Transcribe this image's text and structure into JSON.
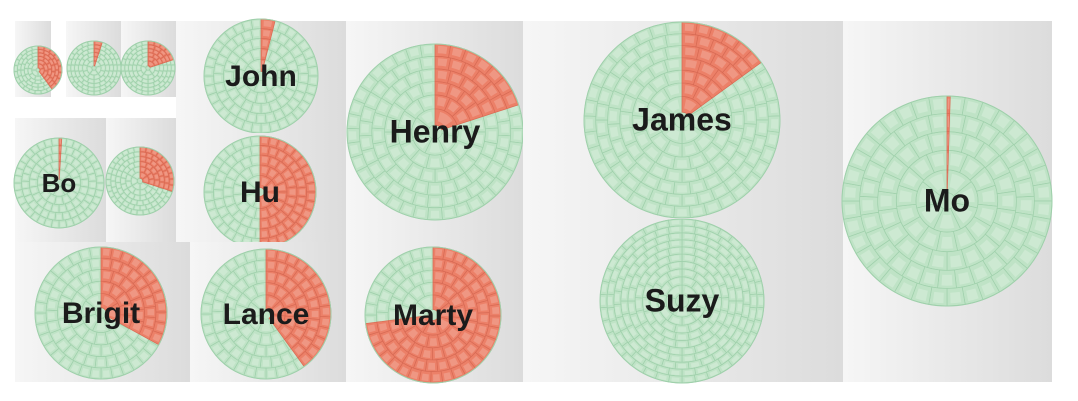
{
  "chart_data": {
    "type": "radial-treemap",
    "colors": {
      "background": "#ffffff",
      "panel_light": "#f6f6f6",
      "panel_dark": "#dcdcdc",
      "highlight": "#ec8068",
      "base": "#bfe3c6",
      "seam": "#9fd0ab",
      "label": "#1b1b1b"
    },
    "panels": [
      {
        "id": "tiny-1",
        "label": "",
        "highlight_fraction": 0.4,
        "rings": 6
      },
      {
        "id": "tiny-2",
        "label": "",
        "highlight_fraction": 0.05,
        "rings": 6
      },
      {
        "id": "tiny-3",
        "label": "",
        "highlight_fraction": 0.2,
        "rings": 6
      },
      {
        "id": "bo",
        "label": "Bo",
        "highlight_fraction": 0.01,
        "rings": 5
      },
      {
        "id": "small-5",
        "label": "",
        "highlight_fraction": 0.3,
        "rings": 6
      },
      {
        "id": "john",
        "label": "John",
        "highlight_fraction": 0.04,
        "rings": 5
      },
      {
        "id": "hu",
        "label": "Hu",
        "highlight_fraction": 0.5,
        "rings": 5
      },
      {
        "id": "brigit",
        "label": "Brigit",
        "highlight_fraction": 0.33,
        "rings": 5
      },
      {
        "id": "lance",
        "label": "Lance",
        "highlight_fraction": 0.4,
        "rings": 5
      },
      {
        "id": "henry",
        "label": "Henry",
        "highlight_fraction": 0.2,
        "rings": 6
      },
      {
        "id": "marty",
        "label": "Marty",
        "highlight_fraction": 0.73,
        "rings": 5
      },
      {
        "id": "james",
        "label": "James",
        "highlight_fraction": 0.15,
        "rings": 7
      },
      {
        "id": "suzy",
        "label": "Suzy",
        "highlight_fraction": 0.0,
        "rings": 10
      },
      {
        "id": "mo",
        "label": "Mo",
        "highlight_fraction": 0.005,
        "rings": 5
      }
    ]
  }
}
